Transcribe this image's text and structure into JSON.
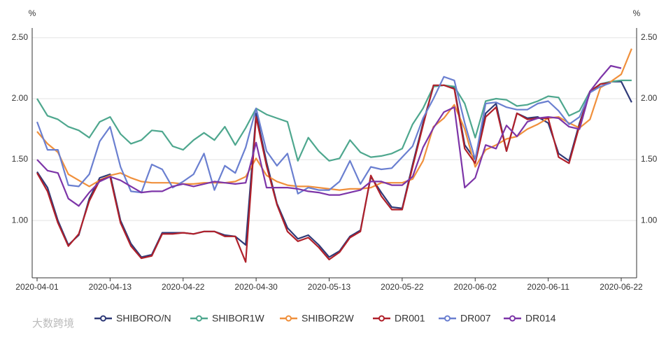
{
  "chart_data": {
    "type": "line",
    "y_unit_left": "%",
    "y_unit_right": "%",
    "watermark": "大数跨境",
    "categories": [
      "2020-04-01",
      null,
      null,
      null,
      null,
      null,
      null,
      "2020-04-13",
      null,
      null,
      null,
      null,
      null,
      null,
      "2020-04-22",
      null,
      null,
      null,
      null,
      null,
      null,
      "2020-04-30",
      null,
      null,
      null,
      null,
      null,
      null,
      "2020-05-13",
      null,
      null,
      null,
      null,
      null,
      null,
      "2020-05-22",
      null,
      null,
      null,
      null,
      null,
      null,
      "2020-06-02",
      null,
      null,
      null,
      null,
      null,
      null,
      "2020-06-11",
      null,
      null,
      null,
      null,
      null,
      null,
      "2020-06-22",
      null
    ],
    "ylim": [
      0.53,
      2.58
    ],
    "yticks": [
      {
        "value": 1.0,
        "label": "1.00"
      },
      {
        "value": 1.5,
        "label": "1.50"
      },
      {
        "value": 2.0,
        "label": "2.00"
      },
      {
        "value": 2.5,
        "label": "2.50"
      }
    ],
    "grid": true,
    "series": [
      {
        "name": "SHIBORO/N",
        "color": "#2f3a78",
        "values": [
          1.4,
          1.27,
          1.0,
          0.8,
          0.88,
          1.18,
          1.35,
          1.38,
          1.0,
          0.81,
          0.7,
          0.72,
          0.9,
          0.9,
          0.9,
          0.89,
          0.91,
          0.91,
          0.88,
          0.87,
          0.8,
          1.88,
          1.48,
          1.14,
          0.94,
          0.85,
          0.88,
          0.8,
          0.7,
          0.75,
          0.87,
          0.92,
          1.36,
          1.23,
          1.11,
          1.1,
          1.46,
          1.8,
          2.1,
          2.11,
          2.09,
          1.62,
          1.5,
          1.88,
          1.96,
          1.57,
          1.88,
          1.84,
          1.85,
          1.8,
          1.55,
          1.49,
          1.8,
          2.05,
          2.12,
          2.14,
          2.14,
          1.97
        ]
      },
      {
        "name": "SHIBOR1W",
        "color": "#4ea78e",
        "values": [
          2.0,
          1.86,
          1.83,
          1.77,
          1.74,
          1.68,
          1.81,
          1.85,
          1.71,
          1.63,
          1.66,
          1.74,
          1.73,
          1.61,
          1.58,
          1.66,
          1.72,
          1.66,
          1.77,
          1.62,
          1.76,
          1.92,
          1.87,
          1.84,
          1.81,
          1.49,
          1.68,
          1.57,
          1.49,
          1.51,
          1.66,
          1.56,
          1.52,
          1.53,
          1.55,
          1.59,
          1.79,
          1.92,
          2.1,
          2.11,
          2.1,
          1.96,
          1.68,
          1.98,
          2.0,
          1.99,
          1.94,
          1.95,
          1.98,
          2.02,
          2.01,
          1.86,
          1.9,
          2.06,
          2.12,
          2.14,
          2.15,
          2.15
        ]
      },
      {
        "name": "SHIBOR2W",
        "color": "#f0903c",
        "values": [
          1.73,
          1.63,
          1.56,
          1.38,
          1.33,
          1.28,
          1.33,
          1.37,
          1.39,
          1.35,
          1.32,
          1.31,
          1.31,
          1.31,
          1.3,
          1.3,
          1.31,
          1.31,
          1.31,
          1.32,
          1.36,
          1.51,
          1.37,
          1.32,
          1.29,
          1.28,
          1.28,
          1.27,
          1.26,
          1.25,
          1.26,
          1.26,
          1.27,
          1.31,
          1.31,
          1.31,
          1.34,
          1.49,
          1.77,
          1.84,
          1.95,
          1.75,
          1.44,
          1.58,
          1.62,
          1.67,
          1.69,
          1.75,
          1.79,
          1.84,
          1.85,
          1.8,
          1.76,
          1.83,
          2.09,
          2.14,
          2.2,
          2.41
        ]
      },
      {
        "name": "DR001",
        "color": "#b0202a",
        "values": [
          1.39,
          1.24,
          0.98,
          0.79,
          0.89,
          1.16,
          1.33,
          1.36,
          0.98,
          0.79,
          0.69,
          0.71,
          0.89,
          0.89,
          0.9,
          0.89,
          0.91,
          0.91,
          0.87,
          0.87,
          0.66,
          1.85,
          1.45,
          1.13,
          0.91,
          0.83,
          0.86,
          0.78,
          0.68,
          0.74,
          0.86,
          0.91,
          1.37,
          1.2,
          1.09,
          1.09,
          1.44,
          1.78,
          2.11,
          2.11,
          2.08,
          1.59,
          1.47,
          1.85,
          1.93,
          1.57,
          1.88,
          1.83,
          1.84,
          1.84,
          1.52,
          1.47,
          1.78,
          2.06,
          2.12,
          2.13,
          null,
          null
        ]
      },
      {
        "name": "DR007",
        "color": "#6a7fd0",
        "values": [
          1.81,
          1.58,
          1.58,
          1.29,
          1.28,
          1.38,
          1.65,
          1.77,
          1.44,
          1.24,
          1.23,
          1.46,
          1.42,
          1.27,
          1.32,
          1.38,
          1.55,
          1.25,
          1.45,
          1.39,
          1.6,
          1.92,
          1.57,
          1.45,
          1.55,
          1.22,
          1.27,
          1.25,
          1.25,
          1.32,
          1.49,
          1.3,
          1.44,
          1.42,
          1.43,
          1.52,
          1.61,
          1.84,
          2.0,
          2.18,
          2.15,
          1.8,
          1.5,
          1.96,
          1.97,
          1.93,
          1.91,
          1.91,
          1.96,
          1.98,
          1.9,
          1.79,
          1.85,
          2.05,
          2.1,
          2.13,
          null,
          null
        ]
      },
      {
        "name": "DR014",
        "color": "#7d35a8",
        "values": [
          1.5,
          1.41,
          1.39,
          1.18,
          1.12,
          1.23,
          1.32,
          1.36,
          1.33,
          1.28,
          1.23,
          1.24,
          1.24,
          1.28,
          1.3,
          1.28,
          1.3,
          1.32,
          1.31,
          1.3,
          1.31,
          1.64,
          1.27,
          1.27,
          1.27,
          1.26,
          1.24,
          1.23,
          1.21,
          1.21,
          1.23,
          1.25,
          1.32,
          1.32,
          1.29,
          1.29,
          1.36,
          1.6,
          1.76,
          1.89,
          1.93,
          1.27,
          1.35,
          1.62,
          1.59,
          1.78,
          1.69,
          1.81,
          1.84,
          1.85,
          1.84,
          1.77,
          1.75,
          2.06,
          2.17,
          2.27,
          2.25,
          null
        ]
      }
    ]
  }
}
